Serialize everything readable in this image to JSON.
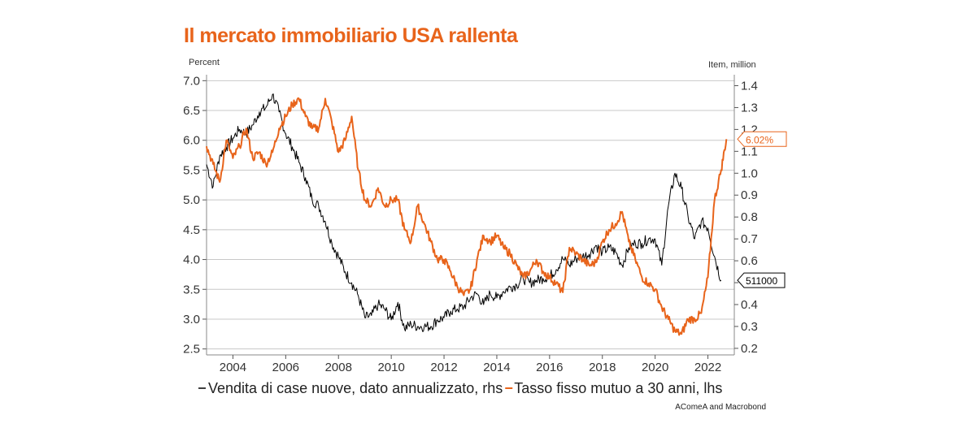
{
  "colors": {
    "accent": "#e8641b",
    "black": "#000000",
    "grid": "#c8c8c8"
  },
  "chart_data": {
    "type": "line",
    "title": "Il mercato immobiliario USA rallenta",
    "source": "AComeA and Macrobond",
    "left_axis": {
      "unit": "Percent",
      "ylim": [
        2.4,
        7.1
      ],
      "ticks": [
        2.5,
        3.0,
        3.5,
        4.0,
        4.5,
        5.0,
        5.5,
        6.0,
        6.5,
        7.0
      ],
      "tick_labels": [
        "2.5",
        "3.0",
        "3.5",
        "4.0",
        "4.5",
        "5.0",
        "5.5",
        "6.0",
        "6.5",
        "7.0"
      ]
    },
    "right_axis": {
      "unit": "Item, million",
      "ylim": [
        0.17,
        1.45
      ],
      "ticks": [
        0.2,
        0.3,
        0.4,
        0.5,
        0.6,
        0.7,
        0.8,
        0.9,
        1.0,
        1.1,
        1.2,
        1.3,
        1.4
      ],
      "tick_labels": [
        "0.2",
        "0.3",
        "0.4",
        "0.5",
        "0.6",
        "0.7",
        "0.8",
        "0.9",
        "1.0",
        "1.1",
        "1.2",
        "1.3",
        "1.4"
      ]
    },
    "x_axis": {
      "xlim": [
        2003.0,
        2023.0
      ],
      "ticks": [
        2004,
        2006,
        2008,
        2010,
        2012,
        2014,
        2016,
        2018,
        2020,
        2022
      ],
      "tick_labels": [
        "2004",
        "2006",
        "2008",
        "2010",
        "2012",
        "2014",
        "2016",
        "2018",
        "2020",
        "2022"
      ]
    },
    "grid": true,
    "legend_position": "bottom",
    "series": [
      {
        "name": "Vendita di case nuove, dato annualizzato, rhs",
        "axis": "right",
        "color": "#000000",
        "end_label": "511000",
        "x": [
          2003.0,
          2003.25,
          2003.5,
          2003.75,
          2004.0,
          2004.25,
          2004.5,
          2004.75,
          2005.0,
          2005.25,
          2005.5,
          2005.75,
          2006.0,
          2006.25,
          2006.5,
          2006.75,
          2007.0,
          2007.25,
          2007.5,
          2007.75,
          2008.0,
          2008.25,
          2008.5,
          2008.75,
          2009.0,
          2009.25,
          2009.5,
          2009.75,
          2010.0,
          2010.25,
          2010.5,
          2010.75,
          2011.0,
          2011.25,
          2011.5,
          2011.75,
          2012.0,
          2012.25,
          2012.5,
          2012.75,
          2013.0,
          2013.25,
          2013.5,
          2013.75,
          2014.0,
          2014.25,
          2014.5,
          2014.75,
          2015.0,
          2015.25,
          2015.5,
          2015.75,
          2016.0,
          2016.25,
          2016.5,
          2016.75,
          2017.0,
          2017.25,
          2017.5,
          2017.75,
          2018.0,
          2018.25,
          2018.5,
          2018.75,
          2019.0,
          2019.25,
          2019.5,
          2019.75,
          2020.0,
          2020.25,
          2020.5,
          2020.75,
          2021.0,
          2021.25,
          2021.5,
          2021.75,
          2022.0,
          2022.25,
          2022.5
        ],
        "values": [
          1.04,
          0.94,
          1.08,
          1.12,
          1.16,
          1.2,
          1.18,
          1.22,
          1.28,
          1.3,
          1.36,
          1.28,
          1.18,
          1.12,
          1.05,
          0.98,
          0.88,
          0.85,
          0.78,
          0.68,
          0.62,
          0.55,
          0.5,
          0.44,
          0.34,
          0.35,
          0.4,
          0.38,
          0.33,
          0.41,
          0.29,
          0.31,
          0.3,
          0.3,
          0.3,
          0.33,
          0.34,
          0.37,
          0.38,
          0.39,
          0.43,
          0.45,
          0.4,
          0.45,
          0.43,
          0.46,
          0.48,
          0.49,
          0.52,
          0.5,
          0.51,
          0.52,
          0.53,
          0.56,
          0.61,
          0.58,
          0.61,
          0.62,
          0.63,
          0.67,
          0.64,
          0.66,
          0.64,
          0.58,
          0.66,
          0.68,
          0.68,
          0.7,
          0.7,
          0.58,
          0.85,
          1.0,
          0.93,
          0.8,
          0.7,
          0.78,
          0.75,
          0.62,
          0.511
        ]
      },
      {
        "name": "Tasso fisso mutuo a 30 anni, lhs",
        "axis": "left",
        "color": "#e8641b",
        "end_label": "6.02%",
        "x": [
          2003.0,
          2003.25,
          2003.5,
          2003.75,
          2004.0,
          2004.25,
          2004.5,
          2004.75,
          2005.0,
          2005.25,
          2005.5,
          2005.75,
          2006.0,
          2006.25,
          2006.5,
          2006.75,
          2007.0,
          2007.25,
          2007.5,
          2007.75,
          2008.0,
          2008.25,
          2008.5,
          2008.75,
          2009.0,
          2009.25,
          2009.5,
          2009.75,
          2010.0,
          2010.25,
          2010.5,
          2010.75,
          2011.0,
          2011.25,
          2011.5,
          2011.75,
          2012.0,
          2012.25,
          2012.5,
          2012.75,
          2013.0,
          2013.25,
          2013.5,
          2013.75,
          2014.0,
          2014.25,
          2014.5,
          2014.75,
          2015.0,
          2015.25,
          2015.5,
          2015.75,
          2016.0,
          2016.25,
          2016.5,
          2016.75,
          2017.0,
          2017.25,
          2017.5,
          2017.75,
          2018.0,
          2018.25,
          2018.5,
          2018.75,
          2019.0,
          2019.25,
          2019.5,
          2019.75,
          2020.0,
          2020.25,
          2020.5,
          2020.75,
          2021.0,
          2021.25,
          2021.5,
          2021.75,
          2022.0,
          2022.25,
          2022.5,
          2022.7
        ],
        "values": [
          5.9,
          5.6,
          5.3,
          6.0,
          5.7,
          5.9,
          6.2,
          5.7,
          5.8,
          5.6,
          5.8,
          6.2,
          6.4,
          6.6,
          6.7,
          6.4,
          6.2,
          6.2,
          6.7,
          6.3,
          5.8,
          6.0,
          6.4,
          5.5,
          5.0,
          4.9,
          5.2,
          4.9,
          5.0,
          5.0,
          4.5,
          4.3,
          4.9,
          4.6,
          4.3,
          4.0,
          4.0,
          3.8,
          3.55,
          3.4,
          3.5,
          4.0,
          4.4,
          4.3,
          4.4,
          4.2,
          4.1,
          3.9,
          3.7,
          3.8,
          4.0,
          3.8,
          3.7,
          3.6,
          3.45,
          4.2,
          4.1,
          4.0,
          3.9,
          3.95,
          4.3,
          4.5,
          4.6,
          4.8,
          4.3,
          4.0,
          3.7,
          3.6,
          3.5,
          3.2,
          3.0,
          2.8,
          2.75,
          3.0,
          3.0,
          3.1,
          3.7,
          5.0,
          5.5,
          6.02
        ]
      }
    ]
  }
}
